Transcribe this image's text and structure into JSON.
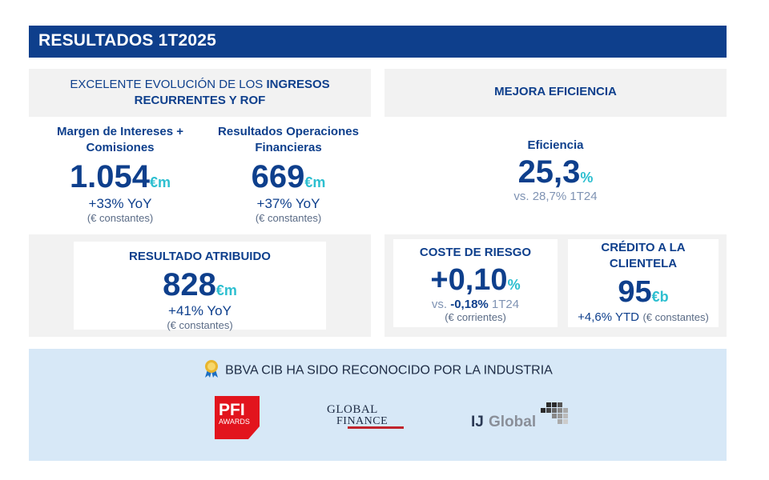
{
  "header": {
    "title": "RESULTADOS 1T2025"
  },
  "left_panel": {
    "title_prefix": "EXCELENTE EVOLUCIÓN DE LOS ",
    "title_bold_1": "INGRESOS",
    "title_bold_2": "RECURRENTES Y ROF",
    "metric_1": {
      "label_line1": "Margen de Intereses +",
      "label_line2": "Comisiones",
      "value": "1.054",
      "unit": "€m",
      "change": "+33% YoY",
      "note": "(€ constantes)"
    },
    "metric_2": {
      "label_line1": "Resultados Operaciones",
      "label_line2": "Financieras",
      "value": "669",
      "unit": "€m",
      "change": "+37% YoY",
      "note": "(€ constantes)"
    },
    "resultado": {
      "label": "RESULTADO ATRIBUIDO",
      "value": "828",
      "unit": "€m",
      "change": "+41% YoY",
      "note": "(€ constantes)"
    }
  },
  "right_panel": {
    "title": "MEJORA EFICIENCIA",
    "eficiencia": {
      "label": "Eficiencia",
      "value": "25,3",
      "unit": "%",
      "compare": "vs. 28,7% 1T24"
    },
    "coste": {
      "label": "COSTE DE RIESGO",
      "value": "+0,10",
      "unit": "%",
      "vs_prefix": "vs. ",
      "vs_value": "-0,18%",
      "vs_suffix": " 1T24",
      "note": "(€ corrientes)"
    },
    "credito": {
      "label_line1": "CRÉDITO A LA",
      "label_line2": "CLIENTELA",
      "value": "95",
      "unit": "€b",
      "change": "+4,6% YTD",
      "note": "(€ constantes)"
    }
  },
  "recognition": {
    "title": "BBVA CIB HA SIDO RECONOCIDO POR LA INDUSTRIA",
    "icon": "award-ribbon-icon",
    "logos": [
      {
        "name": "pfi-awards-logo",
        "text_1": "PFI",
        "text_2": "AWARDS"
      },
      {
        "name": "global-finance-logo",
        "text_1": "GLOBAL",
        "text_2": "FINANCE"
      },
      {
        "name": "ijglobal-logo",
        "text_1": "IJ",
        "text_2": "Global"
      }
    ]
  },
  "colors": {
    "navy": "#0e3f8c",
    "accent": "#2dbfd0",
    "panel": "#f2f2f2",
    "band": "#d7e8f7",
    "pfi_red": "#e2141d"
  }
}
